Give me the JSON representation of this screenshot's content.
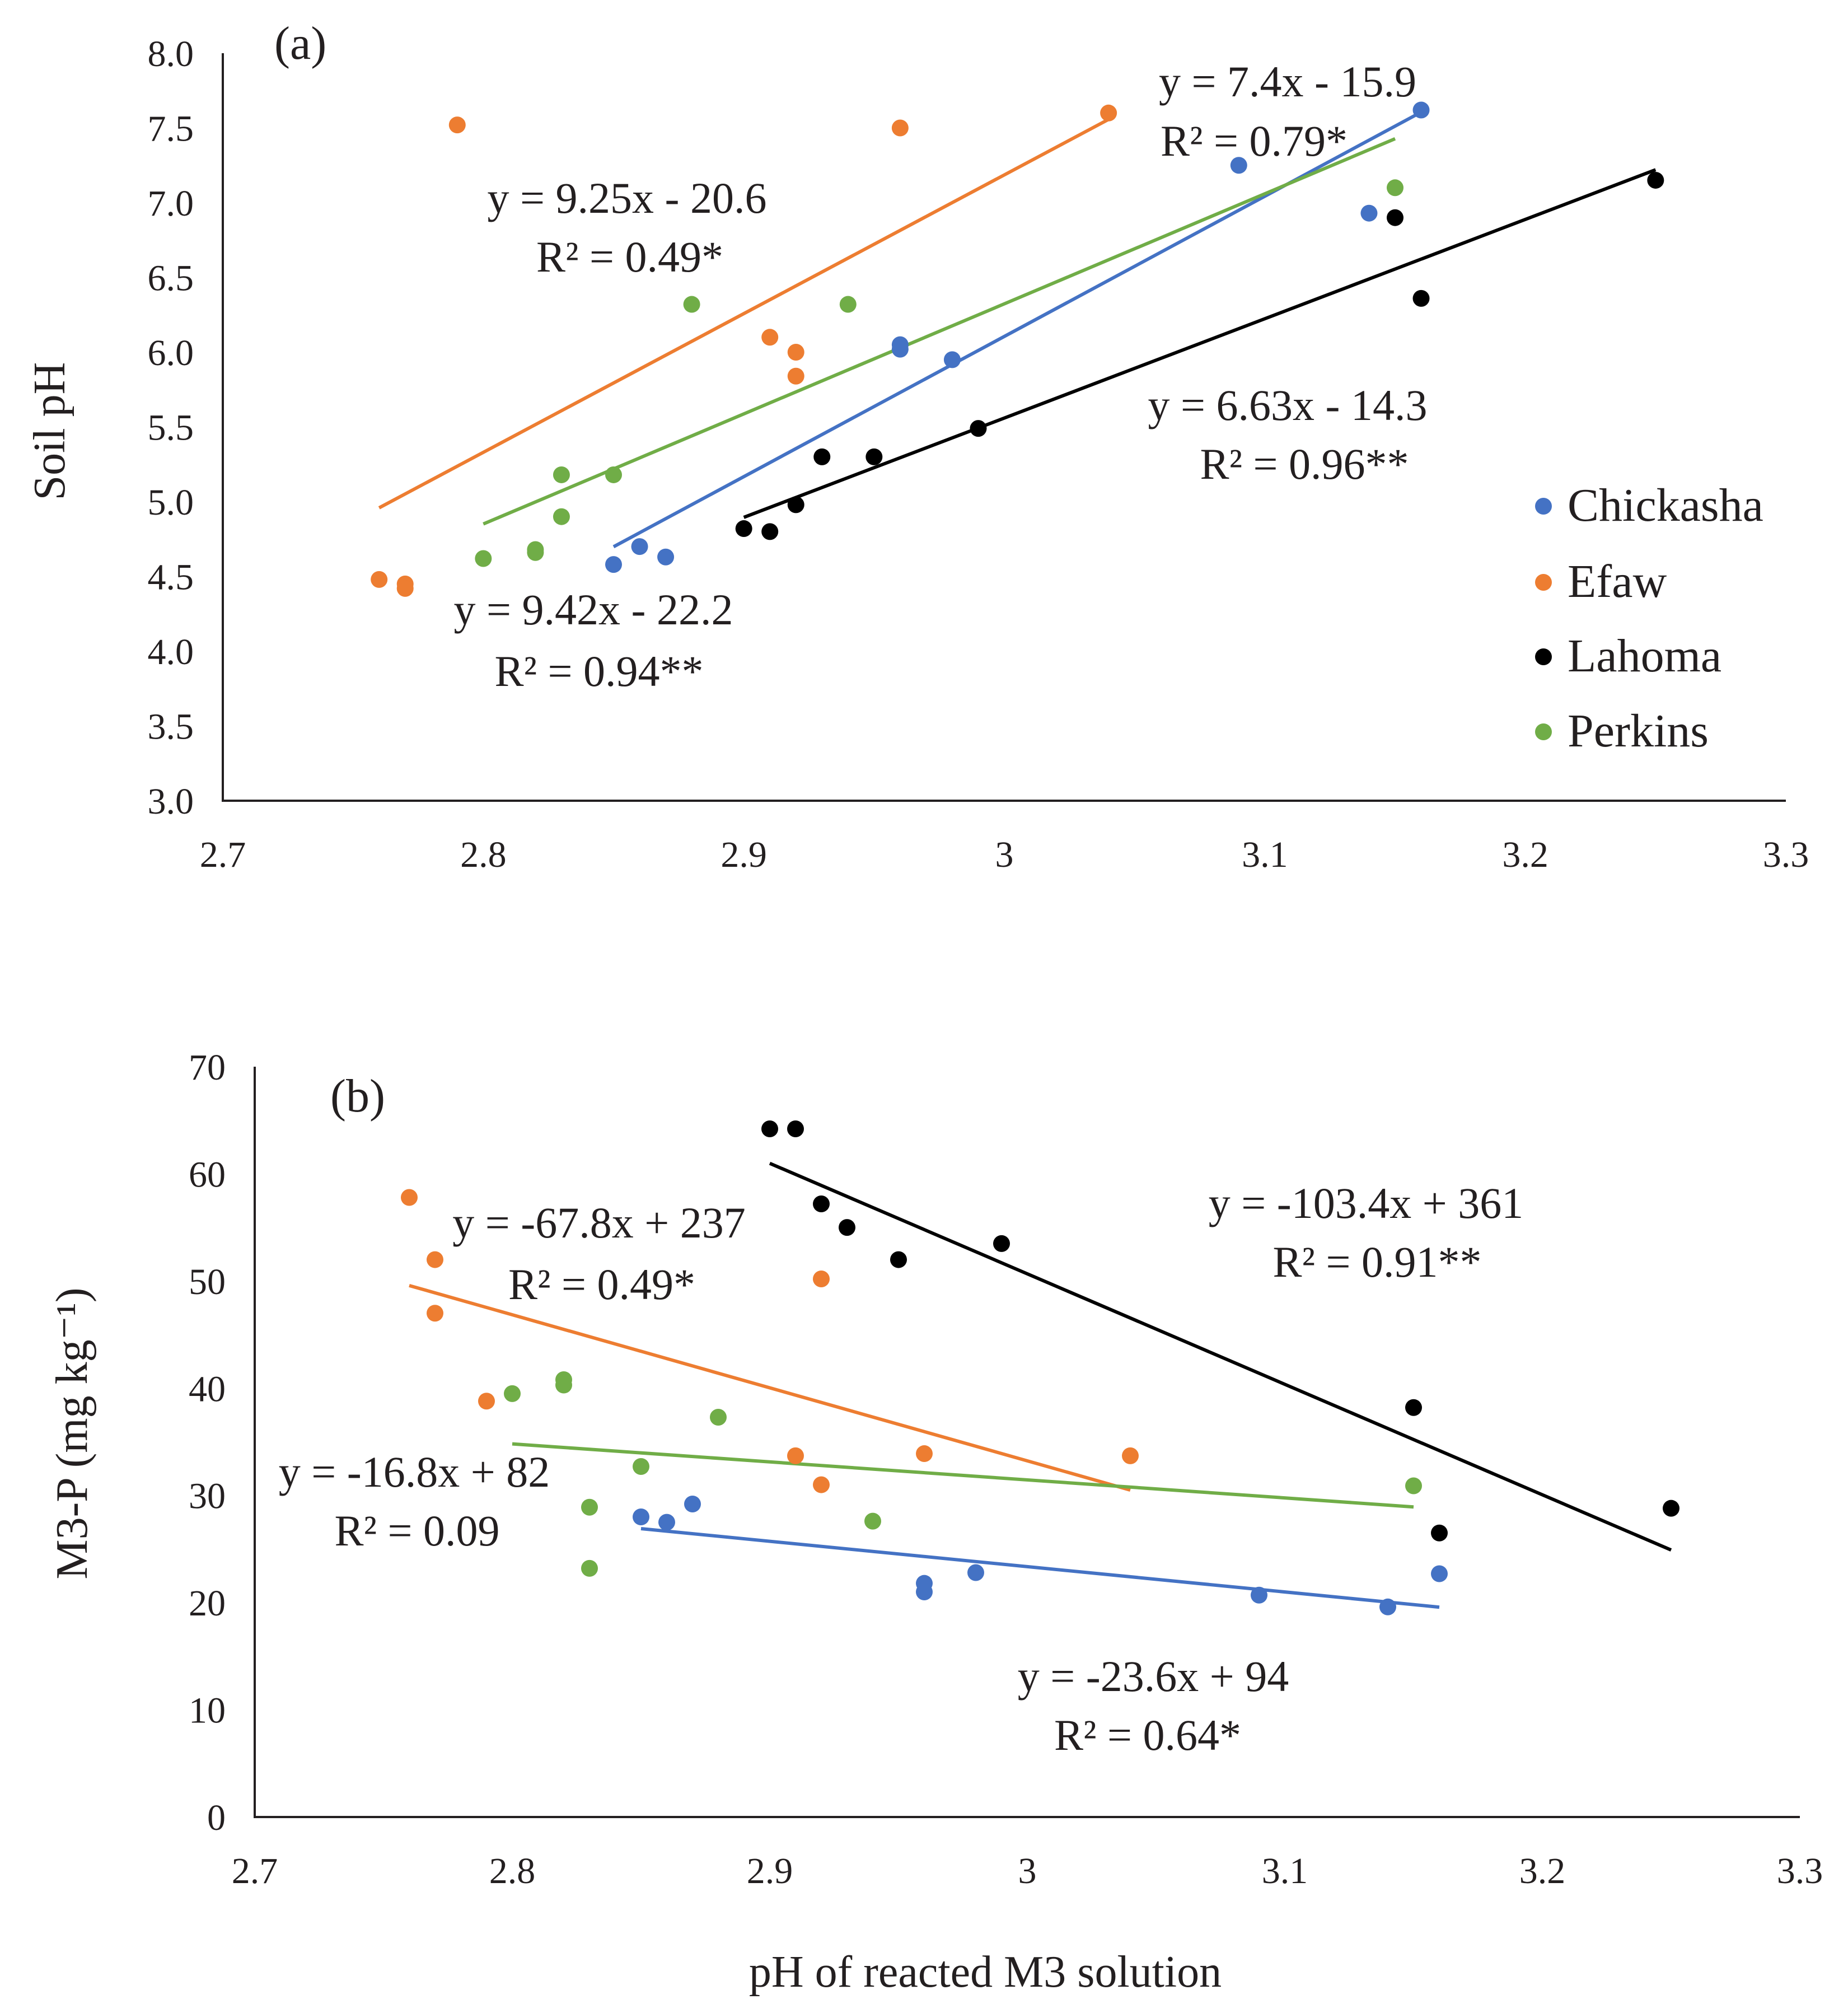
{
  "figure": {
    "xlabel": "pH of reacted M3 solution",
    "legend": [
      {
        "name": "Chickasha",
        "color": "#4472c4"
      },
      {
        "name": "Efaw",
        "color": "#ed7d31"
      },
      {
        "name": "Lahoma",
        "color": "#000000"
      },
      {
        "name": "Perkins",
        "color": "#70ad47"
      }
    ]
  },
  "chart_data": [
    {
      "type": "scatter",
      "panel_label": "(a)",
      "title": "",
      "xlabel": "",
      "ylabel": "Soil pH",
      "xlim": [
        2.7,
        3.3
      ],
      "ylim": [
        3.0,
        8.0
      ],
      "x_ticks": [
        "2.7",
        "2.8",
        "2.9",
        "3",
        "3.1",
        "3.2",
        "3.3"
      ],
      "y_ticks": [
        "3.0",
        "3.5",
        "4.0",
        "4.5",
        "5.0",
        "5.5",
        "6.0",
        "6.5",
        "7.0",
        "7.5",
        "8.0"
      ],
      "series": [
        {
          "name": "Chickasha",
          "color": "#4472c4",
          "x": [
            2.85,
            2.86,
            2.87,
            2.96,
            2.96,
            2.98,
            3.09,
            3.14,
            3.16
          ],
          "y": [
            4.58,
            4.7,
            4.63,
            6.05,
            6.02,
            5.95,
            7.25,
            6.93,
            7.62
          ],
          "trend": {
            "x": [
              2.85,
              3.16
            ],
            "equation": "y = 7.4x - 15.9",
            "r2": "R² = 0.79*"
          }
        },
        {
          "name": "Efaw",
          "color": "#ed7d31",
          "x": [
            2.76,
            2.77,
            2.77,
            2.79,
            2.91,
            2.92,
            2.92,
            2.96,
            3.04
          ],
          "y": [
            4.48,
            4.45,
            4.42,
            7.52,
            6.1,
            6.0,
            5.84,
            7.5,
            7.6
          ],
          "trend": {
            "x": [
              2.76,
              3.04
            ],
            "equation": "y = 9.25x - 20.6",
            "r2": "R² = 0.49*"
          }
        },
        {
          "name": "Lahoma",
          "color": "#000000",
          "x": [
            2.9,
            2.91,
            2.92,
            2.93,
            2.95,
            2.99,
            3.15,
            3.16,
            3.25
          ],
          "y": [
            4.82,
            4.8,
            4.98,
            5.3,
            5.3,
            5.49,
            6.9,
            6.36,
            7.15
          ],
          "trend": {
            "x": [
              2.9,
              3.25
            ],
            "equation": "y = 6.63x - 14.3",
            "r2": "R² = 0.96**"
          }
        },
        {
          "name": "Perkins",
          "color": "#70ad47",
          "x": [
            2.8,
            2.82,
            2.82,
            2.83,
            2.83,
            2.85,
            2.88,
            2.94,
            3.15
          ],
          "y": [
            4.62,
            4.68,
            4.66,
            4.9,
            5.18,
            5.18,
            6.32,
            6.32,
            7.1
          ],
          "trend": {
            "x": [
              2.8,
              3.15
            ],
            "equation": "y = 9.42x - 22.2",
            "r2": "R² = 0.94**"
          }
        }
      ]
    },
    {
      "type": "scatter",
      "panel_label": "(b)",
      "title": "",
      "xlabel": "pH of reacted M3 solution",
      "ylabel": "M3-P (mg kg⁻¹)",
      "xlim": [
        2.7,
        3.3
      ],
      "ylim": [
        0,
        70
      ],
      "x_ticks": [
        "2.7",
        "2.8",
        "2.9",
        "3",
        "3.1",
        "3.2",
        "3.3"
      ],
      "y_ticks": [
        "0",
        "10",
        "20",
        "30",
        "40",
        "50",
        "60",
        "70"
      ],
      "series": [
        {
          "name": "Chickasha",
          "color": "#4472c4",
          "x": [
            2.85,
            2.86,
            2.87,
            2.96,
            2.96,
            2.98,
            3.09,
            3.14,
            3.16
          ],
          "y": [
            28.0,
            27.5,
            29.2,
            21.0,
            21.8,
            22.8,
            20.7,
            19.6,
            22.7
          ],
          "trend": {
            "x": [
              2.85,
              3.16
            ],
            "equation": "y = -23.6x + 94",
            "r2": "R² = 0.64*"
          }
        },
        {
          "name": "Efaw",
          "color": "#ed7d31",
          "x": [
            2.76,
            2.77,
            2.77,
            2.79,
            2.91,
            2.92,
            2.92,
            2.96,
            3.04
          ],
          "y": [
            57.8,
            52.0,
            47.0,
            38.8,
            33.7,
            31.0,
            50.2,
            33.9,
            33.7
          ],
          "trend": {
            "x": [
              2.76,
              3.04
            ],
            "equation": "y = -67.8x + 237",
            "r2": "R² = 0.49*"
          }
        },
        {
          "name": "Lahoma",
          "color": "#000000",
          "x": [
            2.9,
            2.91,
            2.92,
            2.93,
            2.95,
            2.99,
            3.15,
            3.16,
            3.25
          ],
          "y": [
            64.2,
            64.2,
            57.2,
            55.0,
            52.0,
            53.5,
            38.2,
            26.5,
            28.8
          ],
          "trend": {
            "x": [
              2.9,
              3.25
            ],
            "equation": "y = -103.4x + 361",
            "r2": "R² = 0.91**"
          }
        },
        {
          "name": "Perkins",
          "color": "#70ad47",
          "x": [
            2.8,
            2.82,
            2.82,
            2.83,
            2.83,
            2.85,
            2.88,
            2.94,
            3.15
          ],
          "y": [
            39.5,
            40.8,
            40.3,
            28.9,
            23.2,
            32.7,
            37.3,
            27.6,
            30.9
          ],
          "trend": {
            "x": [
              2.8,
              3.15
            ],
            "equation": "y = -16.8x + 82",
            "r2": "R² = 0.09"
          }
        }
      ]
    }
  ]
}
